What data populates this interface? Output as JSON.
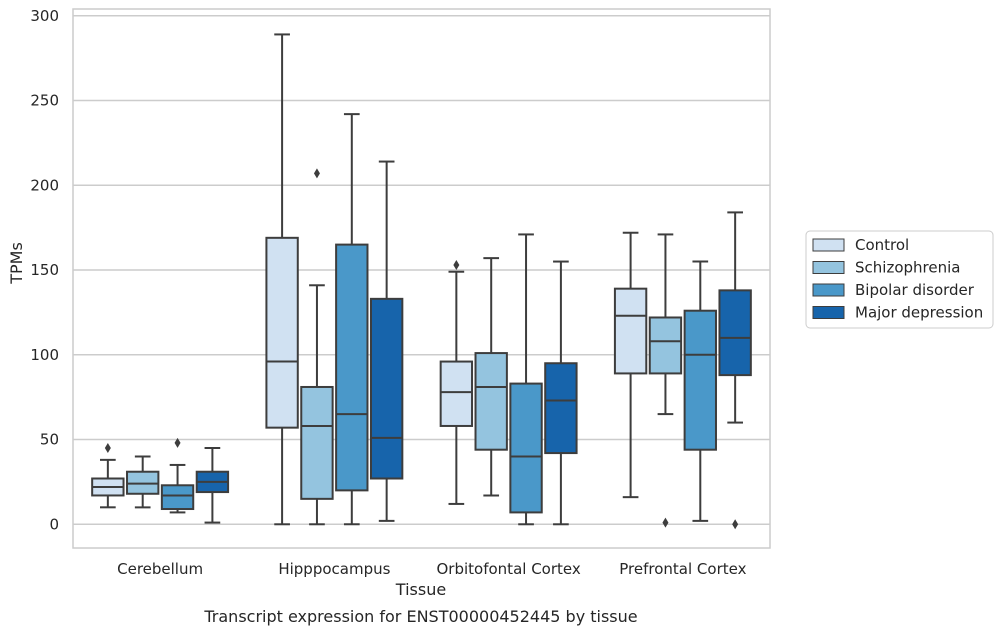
{
  "caption": "Transcript expression for ENST00000452445 by tissue",
  "chart_data": {
    "type": "box",
    "xlabel": "Tissue",
    "ylabel": "TPMs",
    "ylim": [
      -14,
      304
    ],
    "yticks": [
      0,
      50,
      100,
      150,
      200,
      250,
      300
    ],
    "grid": "horizontal",
    "legend_position": "right",
    "categories": [
      "Cerebellum",
      "Hipppocampus",
      "Orbitofontal Cortex",
      "Prefrontal Cortex"
    ],
    "series": [
      {
        "name": "Control",
        "color": "#d0e1f2",
        "boxes": [
          {
            "whislo": 10,
            "q1": 17,
            "med": 22,
            "q3": 27,
            "whishi": 38,
            "fliers": [
              45
            ]
          },
          {
            "whislo": 0,
            "q1": 57,
            "med": 96,
            "q3": 169,
            "whishi": 289,
            "fliers": []
          },
          {
            "whislo": 12,
            "q1": 58,
            "med": 78,
            "q3": 96,
            "whishi": 149,
            "fliers": [
              153
            ]
          },
          {
            "whislo": 16,
            "q1": 89,
            "med": 123,
            "q3": 139,
            "whishi": 172,
            "fliers": []
          }
        ]
      },
      {
        "name": "Schizophrenia",
        "color": "#94c4df",
        "boxes": [
          {
            "whislo": 10,
            "q1": 18,
            "med": 24,
            "q3": 31,
            "whishi": 40,
            "fliers": []
          },
          {
            "whislo": 0,
            "q1": 15,
            "med": 58,
            "q3": 81,
            "whishi": 141,
            "fliers": [
              207
            ]
          },
          {
            "whislo": 17,
            "q1": 44,
            "med": 81,
            "q3": 101,
            "whishi": 157,
            "fliers": []
          },
          {
            "whislo": 65,
            "q1": 89,
            "med": 108,
            "q3": 122,
            "whishi": 171,
            "fliers": [
              1
            ]
          }
        ]
      },
      {
        "name": "Bipolar disorder",
        "color": "#4a98c9",
        "boxes": [
          {
            "whislo": 7,
            "q1": 9,
            "med": 17,
            "q3": 23,
            "whishi": 35,
            "fliers": [
              48
            ]
          },
          {
            "whislo": 0,
            "q1": 20,
            "med": 65,
            "q3": 165,
            "whishi": 242,
            "fliers": []
          },
          {
            "whislo": 0,
            "q1": 7,
            "med": 40,
            "q3": 83,
            "whishi": 171,
            "fliers": []
          },
          {
            "whislo": 2,
            "q1": 44,
            "med": 100,
            "q3": 126,
            "whishi": 155,
            "fliers": []
          }
        ]
      },
      {
        "name": "Major depression",
        "color": "#1764ab",
        "boxes": [
          {
            "whislo": 1,
            "q1": 19,
            "med": 25,
            "q3": 31,
            "whishi": 45,
            "fliers": []
          },
          {
            "whislo": 2,
            "q1": 27,
            "med": 51,
            "q3": 133,
            "whishi": 214,
            "fliers": []
          },
          {
            "whislo": 0,
            "q1": 42,
            "med": 73,
            "q3": 95,
            "whishi": 155,
            "fliers": []
          },
          {
            "whislo": 60,
            "q1": 88,
            "med": 110,
            "q3": 138,
            "whishi": 184,
            "fliers": [
              0
            ]
          }
        ]
      }
    ]
  }
}
